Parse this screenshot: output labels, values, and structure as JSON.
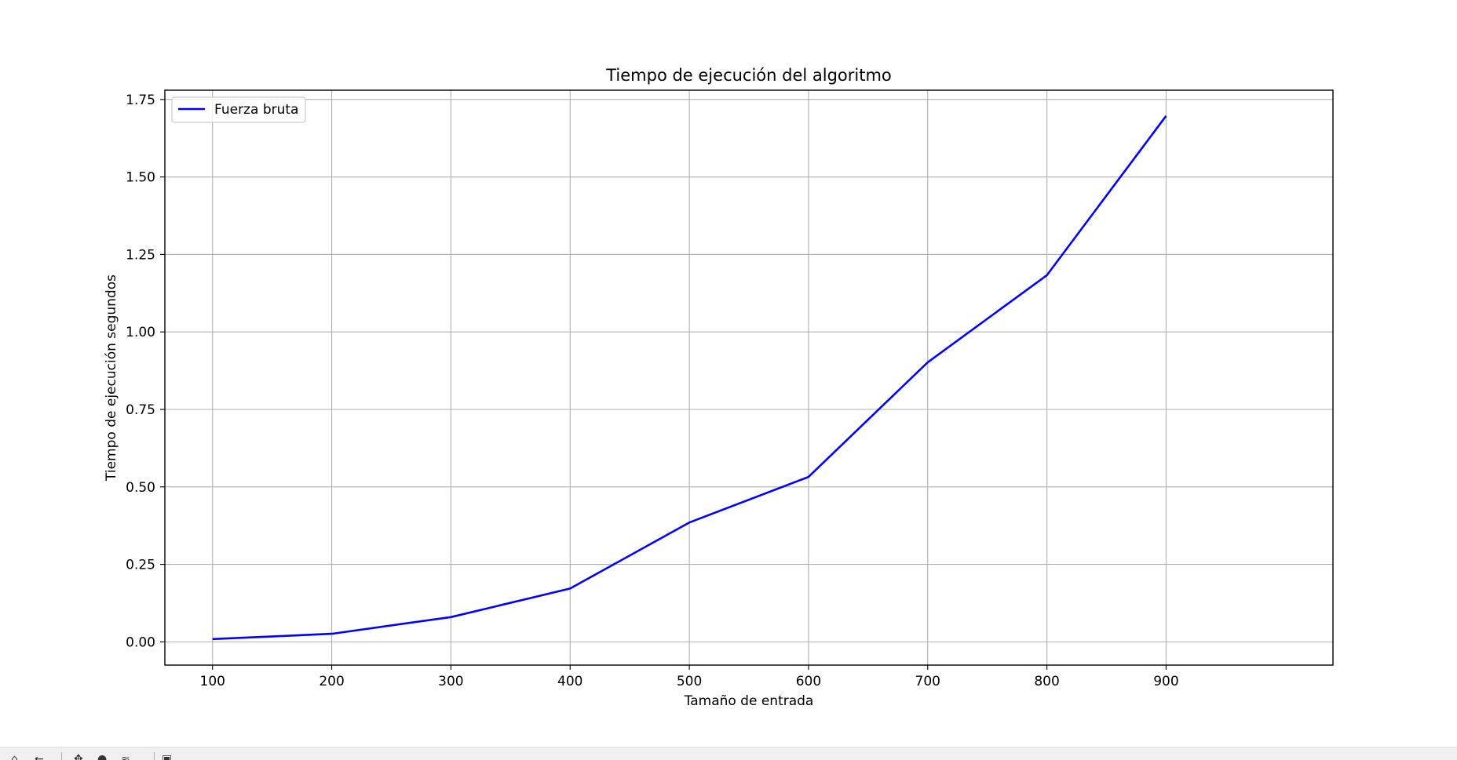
{
  "chart_data": {
    "type": "line",
    "title": "Tiempo de ejecución del algoritmo",
    "xlabel": "Tamaño de entrada",
    "ylabel": "Tiempo de ejecución segundos",
    "xlim": [
      60,
      1040
    ],
    "ylim": [
      -0.075,
      1.78
    ],
    "xticks": [
      100,
      200,
      300,
      400,
      500,
      600,
      700,
      800,
      900
    ],
    "xtick_labels": [
      "100",
      "200",
      "300",
      "400",
      "500",
      "600",
      "700",
      "800",
      "900"
    ],
    "yticks": [
      0.0,
      0.25,
      0.5,
      0.75,
      1.0,
      1.25,
      1.5,
      1.75
    ],
    "ytick_labels": [
      "0.00",
      "0.25",
      "0.50",
      "0.75",
      "1.00",
      "1.25",
      "1.50",
      "1.75"
    ],
    "grid": true,
    "legend_position": "upper left",
    "series": [
      {
        "name": "Fuerza bruta",
        "color": "#0000ff",
        "x": [
          100,
          200,
          300,
          400,
          500,
          600,
          700,
          800,
          900
        ],
        "y": [
          0.009,
          0.026,
          0.08,
          0.172,
          0.385,
          0.532,
          0.902,
          1.183,
          1.697
        ]
      }
    ]
  },
  "toolbar": {
    "icons": [
      "home-icon",
      "back-icon",
      "forward-icon",
      "pan-icon",
      "zoom-icon",
      "configure-icon",
      "save-icon"
    ]
  }
}
